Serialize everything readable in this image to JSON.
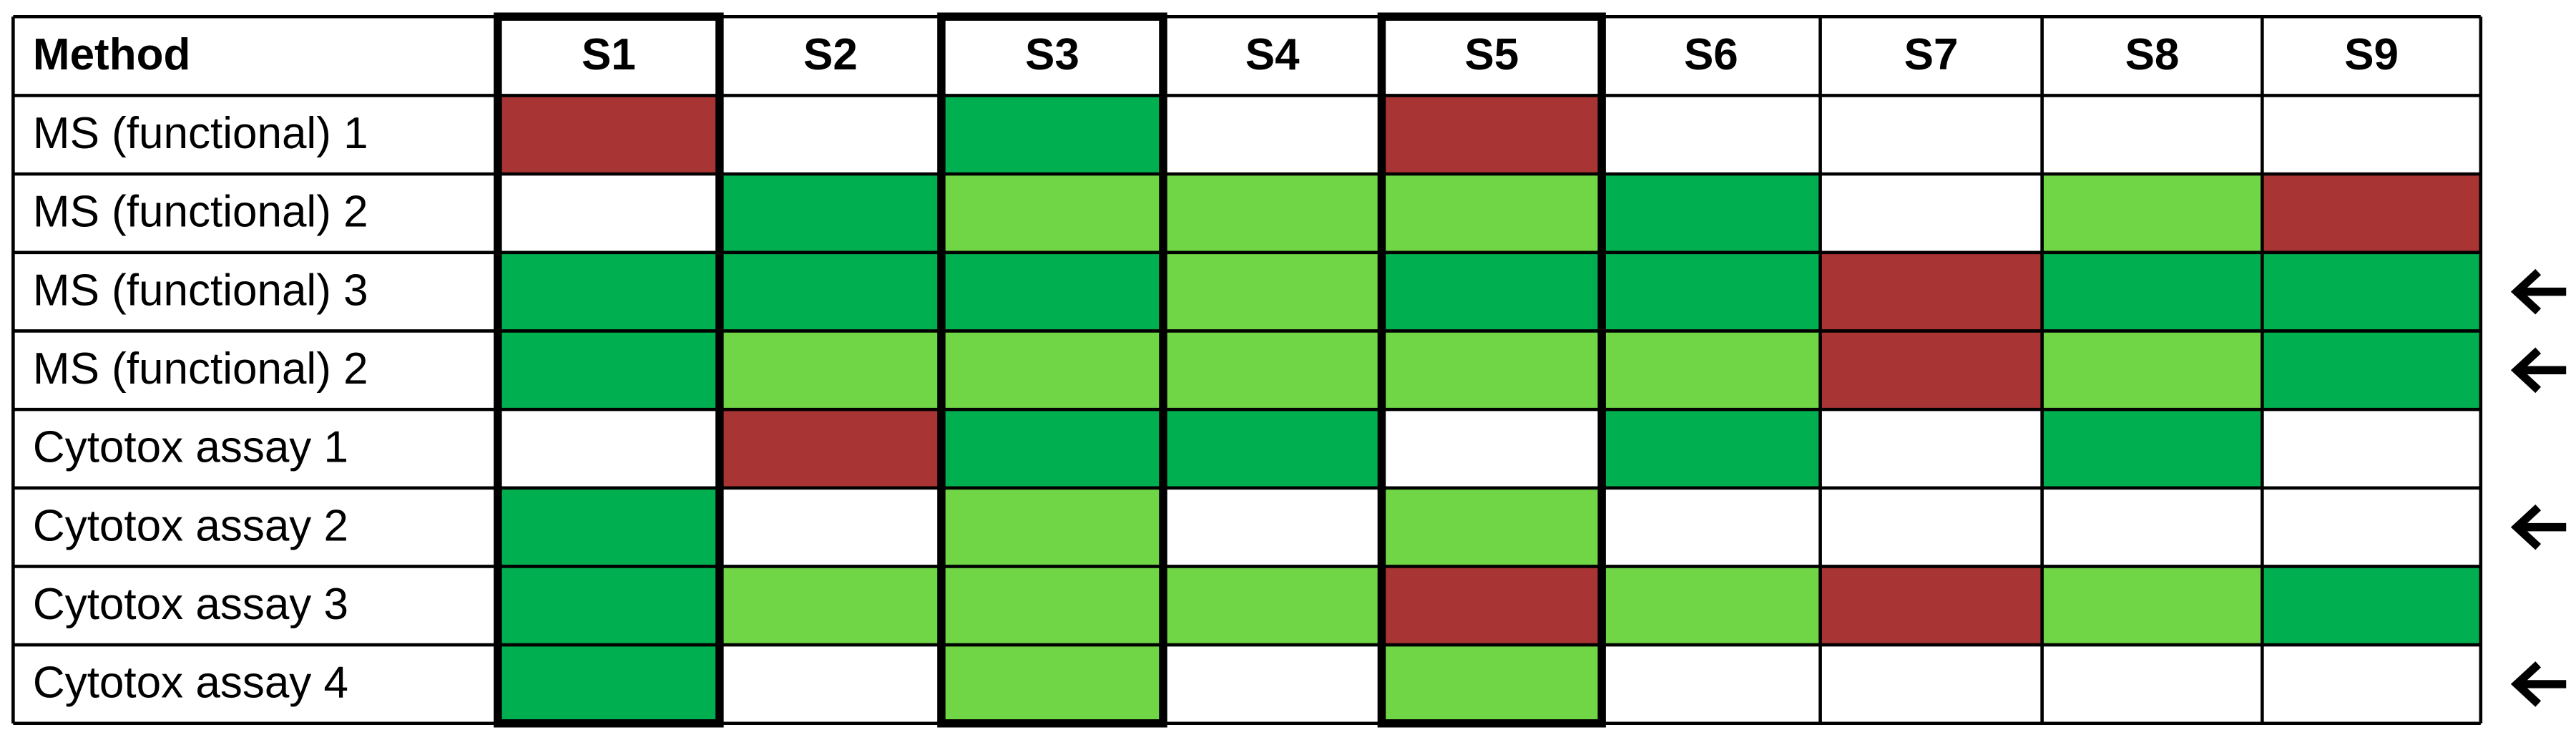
{
  "table": {
    "header": [
      "Method",
      "S1",
      "S2",
      "S3",
      "S4",
      "S5",
      "S6",
      "S7",
      "S8",
      "S9"
    ],
    "highlight_columns": [
      1,
      3,
      5
    ],
    "rows": [
      {
        "label": "MS (functional) 1",
        "arrow": false,
        "cells": [
          "#a83434",
          null,
          "#00b050",
          null,
          "#a83434",
          null,
          null,
          null,
          null
        ]
      },
      {
        "label": "MS (functional) 2",
        "arrow": false,
        "cells": [
          null,
          "#00b050",
          "#70d645",
          "#70d645",
          "#70d645",
          "#00b050",
          null,
          "#70d645",
          "#a83434"
        ]
      },
      {
        "label": "MS (functional) 3",
        "arrow": true,
        "cells": [
          "#00b050",
          "#00b050",
          "#00b050",
          "#70d645",
          "#00b050",
          "#00b050",
          "#a83434",
          "#00b050",
          "#00b050"
        ]
      },
      {
        "label": "MS (functional) 2",
        "arrow": true,
        "cells": [
          "#00b050",
          "#70d645",
          "#70d645",
          "#70d645",
          "#70d645",
          "#70d645",
          "#a83434",
          "#70d645",
          "#00b050"
        ]
      },
      {
        "label": "Cytotox assay 1",
        "arrow": false,
        "cells": [
          null,
          "#a83434",
          "#00b050",
          "#00b050",
          null,
          "#00b050",
          null,
          "#00b050",
          null
        ]
      },
      {
        "label": "Cytotox assay 2",
        "arrow": true,
        "cells": [
          "#00b050",
          null,
          "#70d645",
          null,
          "#70d645",
          null,
          null,
          null,
          null
        ]
      },
      {
        "label": "Cytotox assay 3",
        "arrow": false,
        "cells": [
          "#00b050",
          "#70d645",
          "#70d645",
          "#70d645",
          "#a83434",
          "#70d645",
          "#a83434",
          "#70d645",
          "#00b050"
        ]
      },
      {
        "label": "Cytotox assay 4",
        "arrow": true,
        "cells": [
          "#00b050",
          null,
          "#70d645",
          null,
          "#70d645",
          null,
          null,
          null,
          null
        ]
      }
    ]
  }
}
